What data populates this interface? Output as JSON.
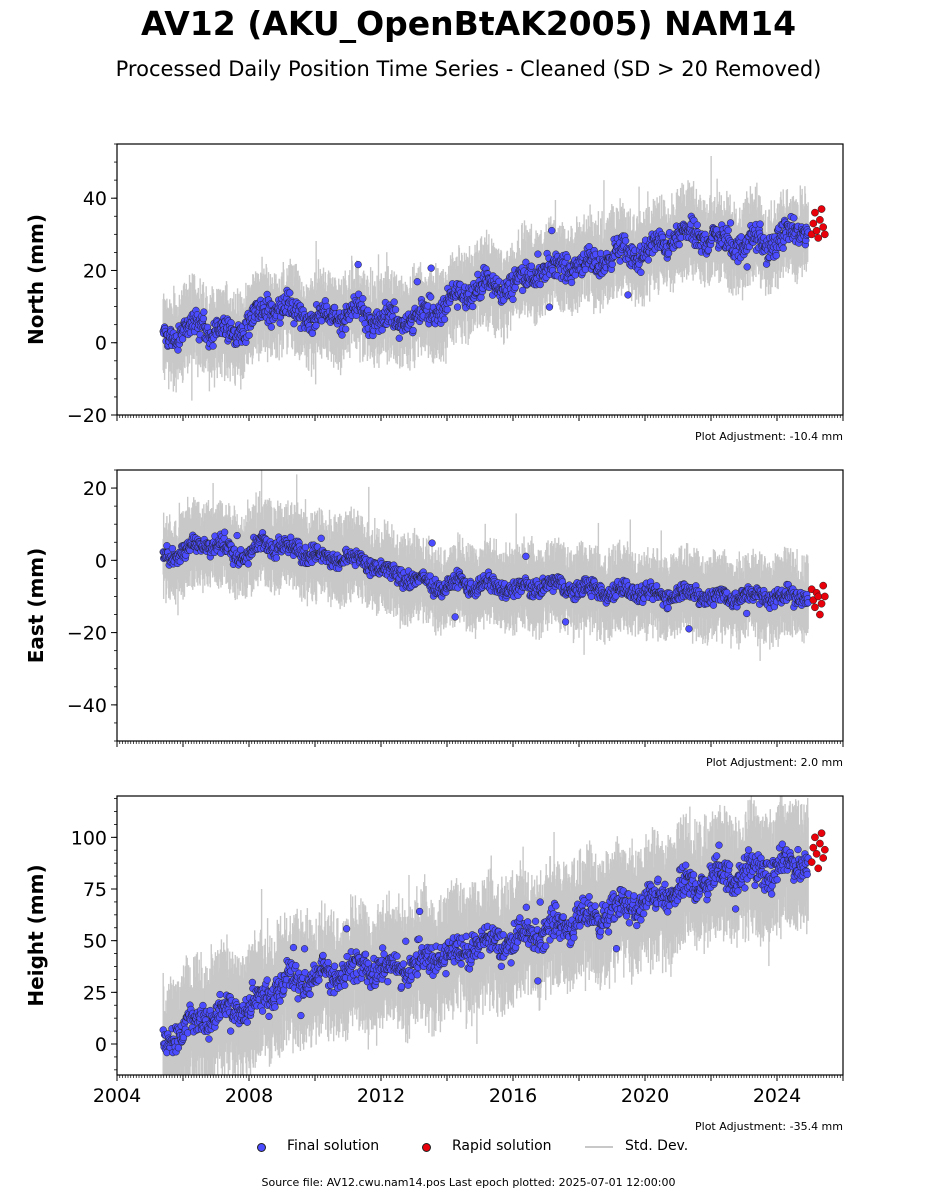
{
  "title": "AV12 (AKU_OpenBtAK2005) NAM14",
  "subtitle": "Processed Daily Position Time Series - Cleaned (SD > 20 Removed)",
  "legend": {
    "final": "Final solution",
    "rapid": "Rapid solution",
    "std": "Std. Dev."
  },
  "source": "Source file: AV12.cwu.nam14.pos  Last epoch plotted: 2025-07-01 12:00:00",
  "colors": {
    "final": "#4b4bff",
    "rapid": "#e8000b",
    "std": "#c8c8c8"
  },
  "chart_data": [
    {
      "type": "scatter",
      "ylabel": "North (mm)",
      "adjustment": "Plot Adjustment: -10.4 mm",
      "xlim": [
        2004.0,
        2026.0
      ],
      "ylim": [
        -20,
        55
      ],
      "yticks": [
        -20,
        0,
        20,
        40
      ],
      "xtick_labels_shown": false,
      "series": [
        {
          "name": "Final solution",
          "x": [
            2005.4,
            2005.9,
            2006.4,
            2006.9,
            2007.4,
            2007.9,
            2008.4,
            2008.9,
            2009.4,
            2009.9,
            2010.4,
            2010.9,
            2011.4,
            2011.9,
            2012.4,
            2012.9,
            2013.4,
            2013.9,
            2014.4,
            2014.9,
            2015.4,
            2015.9,
            2016.4,
            2016.9,
            2017.4,
            2017.9,
            2018.4,
            2018.9,
            2019.4,
            2019.9,
            2020.4,
            2020.9,
            2021.4,
            2021.9,
            2022.4,
            2022.9,
            2023.4,
            2023.9,
            2024.4,
            2024.9
          ],
          "y": [
            1,
            3,
            5,
            3,
            2,
            4,
            9,
            10,
            8,
            7,
            7,
            8,
            9,
            6,
            6,
            7,
            8,
            10,
            13,
            16,
            15,
            16,
            18,
            20,
            21,
            22,
            21,
            24,
            25,
            24,
            27,
            29,
            30,
            29,
            28,
            27,
            28,
            27,
            30,
            32
          ]
        },
        {
          "name": "Rapid solution",
          "x": [
            2025.05,
            2025.1,
            2025.15,
            2025.2,
            2025.25,
            2025.3,
            2025.35,
            2025.4,
            2025.45
          ],
          "y": [
            30,
            33,
            36,
            31,
            29,
            34,
            37,
            32,
            30
          ]
        }
      ]
    },
    {
      "type": "scatter",
      "ylabel": "East (mm)",
      "adjustment": "Plot Adjustment: 2.0 mm",
      "xlim": [
        2004.0,
        2026.0
      ],
      "ylim": [
        -50,
        25
      ],
      "yticks": [
        -40,
        -20,
        0,
        20
      ],
      "xtick_labels_shown": false,
      "series": [
        {
          "name": "Final solution",
          "x": [
            2005.4,
            2005.9,
            2006.4,
            2006.9,
            2007.4,
            2007.9,
            2008.4,
            2008.9,
            2009.4,
            2009.9,
            2010.4,
            2010.9,
            2011.4,
            2011.9,
            2012.4,
            2012.9,
            2013.4,
            2013.9,
            2014.4,
            2014.9,
            2015.4,
            2015.9,
            2016.4,
            2016.9,
            2017.4,
            2017.9,
            2018.4,
            2018.9,
            2019.4,
            2019.9,
            2020.4,
            2020.9,
            2021.4,
            2021.9,
            2022.4,
            2022.9,
            2023.4,
            2023.9,
            2024.4,
            2024.9
          ],
          "y": [
            1,
            2,
            4,
            5,
            3,
            1,
            5,
            4,
            3,
            2,
            0,
            1,
            0,
            -2,
            -4,
            -5,
            -6,
            -8,
            -6,
            -7,
            -7,
            -8,
            -8,
            -7,
            -7,
            -8,
            -8,
            -9,
            -8,
            -9,
            -10,
            -9,
            -9,
            -10,
            -10,
            -10,
            -10,
            -10,
            -10,
            -10
          ]
        },
        {
          "name": "Rapid solution",
          "x": [
            2025.05,
            2025.1,
            2025.15,
            2025.2,
            2025.25,
            2025.3,
            2025.35,
            2025.4,
            2025.45
          ],
          "y": [
            -8,
            -11,
            -13,
            -9,
            -10,
            -15,
            -12,
            -7,
            -10
          ]
        }
      ]
    },
    {
      "type": "scatter",
      "ylabel": "Height (mm)",
      "adjustment": "Plot Adjustment: -35.4 mm",
      "xlim": [
        2004.0,
        2026.0
      ],
      "ylim": [
        -15,
        120
      ],
      "yticks": [
        0,
        25,
        50,
        75,
        100
      ],
      "xtick_labels_shown": true,
      "xticks": [
        2004,
        2008,
        2012,
        2016,
        2020,
        2024
      ],
      "xtick_labels": [
        "2004",
        "2008",
        "2012",
        "2016",
        "2020",
        "2024"
      ],
      "series": [
        {
          "name": "Final solution",
          "x": [
            2005.4,
            2005.9,
            2006.4,
            2006.9,
            2007.4,
            2007.9,
            2008.4,
            2008.9,
            2009.4,
            2009.9,
            2010.4,
            2010.9,
            2011.4,
            2011.9,
            2012.4,
            2012.9,
            2013.4,
            2013.9,
            2014.4,
            2014.9,
            2015.4,
            2015.9,
            2016.4,
            2016.9,
            2017.4,
            2017.9,
            2018.4,
            2018.9,
            2019.4,
            2019.9,
            2020.4,
            2020.9,
            2021.4,
            2021.9,
            2022.4,
            2022.9,
            2023.4,
            2023.9,
            2024.4,
            2024.9
          ],
          "y": [
            0,
            6,
            10,
            14,
            17,
            16,
            22,
            28,
            30,
            32,
            33,
            36,
            37,
            36,
            37,
            38,
            40,
            43,
            45,
            48,
            49,
            50,
            52,
            55,
            57,
            60,
            61,
            64,
            66,
            68,
            70,
            74,
            76,
            80,
            81,
            82,
            83,
            84,
            86,
            90
          ]
        },
        {
          "name": "Rapid solution",
          "x": [
            2025.05,
            2025.1,
            2025.15,
            2025.2,
            2025.25,
            2025.3,
            2025.35,
            2025.4,
            2025.45
          ],
          "y": [
            88,
            95,
            100,
            92,
            85,
            97,
            102,
            90,
            94
          ]
        }
      ]
    }
  ]
}
